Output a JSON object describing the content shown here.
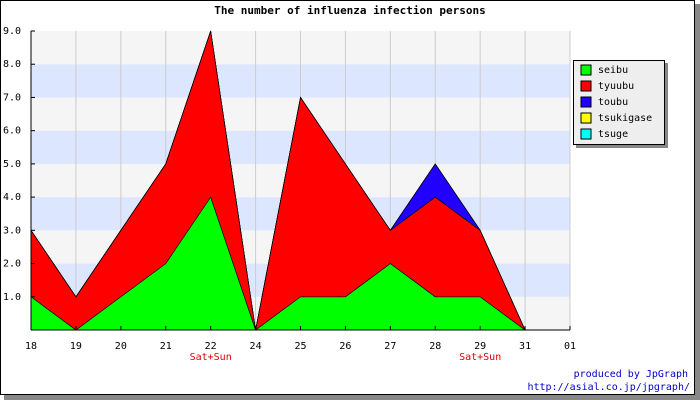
{
  "chart_data": {
    "type": "area",
    "stacked": true,
    "title": "The number of influenza infection persons",
    "categories": [
      "18",
      "19",
      "20",
      "21",
      "22",
      "24",
      "25",
      "26",
      "27",
      "28",
      "29",
      "31",
      "01"
    ],
    "x_sublabels": [
      null,
      null,
      null,
      null,
      "Sat+Sun",
      null,
      null,
      null,
      null,
      null,
      "Sat+Sun",
      null,
      null
    ],
    "series": [
      {
        "name": "seibu",
        "color": "#00ff00",
        "values": [
          1,
          0,
          1,
          2,
          4,
          0,
          1,
          1,
          2,
          1,
          1,
          0,
          null
        ]
      },
      {
        "name": "tyuubu",
        "color": "#ff0000",
        "values": [
          2,
          1,
          2,
          3,
          5,
          0,
          6,
          4,
          1,
          3,
          2,
          0,
          null
        ]
      },
      {
        "name": "toubu",
        "color": "#2200ff",
        "values": [
          0,
          0,
          0,
          0,
          0,
          0,
          0,
          0,
          0,
          1,
          0,
          0,
          null
        ]
      },
      {
        "name": "tsukigase",
        "color": "#ffff00",
        "values": [
          0,
          0,
          0,
          0,
          0,
          0,
          0,
          0,
          0,
          0,
          0,
          0,
          null
        ]
      },
      {
        "name": "tsuge",
        "color": "#00ffff",
        "values": [
          0,
          0,
          0,
          0,
          0,
          0,
          0,
          0,
          0,
          0,
          0,
          0,
          null
        ]
      }
    ],
    "ylim": [
      0,
      9
    ],
    "yticks": [
      {
        "value": 1,
        "label": "1.0"
      },
      {
        "value": 2,
        "label": "2.0"
      },
      {
        "value": 3,
        "label": "3.0"
      },
      {
        "value": 4,
        "label": "4.0"
      },
      {
        "value": 5,
        "label": "5.0"
      },
      {
        "value": 6,
        "label": "6.0"
      },
      {
        "value": 7,
        "label": "7.0"
      },
      {
        "value": 8,
        "label": "8.0"
      },
      {
        "value": 9,
        "label": "9.0"
      }
    ],
    "grid": true,
    "legend": "right",
    "footer": [
      "produced by JpGraph",
      "http://asial.co.jp/jpgraph/"
    ]
  }
}
